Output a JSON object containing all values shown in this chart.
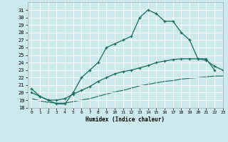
{
  "title": "",
  "xlabel": "Humidex (Indice chaleur)",
  "ylabel": "",
  "bg_color": "#cce9ed",
  "grid_color": "#ffffff",
  "line_color": "#1a6b5a",
  "ylim": [
    18,
    32
  ],
  "xlim": [
    -0.5,
    23
  ],
  "yticks": [
    18,
    19,
    20,
    21,
    22,
    23,
    24,
    25,
    26,
    27,
    28,
    29,
    30,
    31
  ],
  "xticks": [
    0,
    1,
    2,
    3,
    4,
    5,
    6,
    7,
    8,
    9,
    10,
    11,
    12,
    13,
    14,
    15,
    16,
    17,
    18,
    19,
    20,
    21,
    22,
    23
  ],
  "line1_x": [
    0,
    1,
    2,
    3,
    4,
    5,
    6,
    7,
    8,
    9,
    10,
    11,
    12,
    13,
    14,
    15,
    16,
    17,
    18,
    19,
    20,
    21,
    22
  ],
  "line1_y": [
    20.5,
    19.5,
    19.0,
    18.5,
    18.5,
    20.0,
    22.0,
    23.0,
    24.0,
    26.0,
    26.5,
    27.0,
    27.5,
    30.0,
    31.0,
    30.5,
    29.5,
    29.5,
    28.0,
    27.0,
    24.5,
    24.5,
    23.0
  ],
  "line2_x": [
    0,
    1,
    2,
    3,
    4,
    5,
    6,
    7,
    8,
    9,
    10,
    11,
    12,
    13,
    14,
    15,
    16,
    17,
    18,
    19,
    20,
    21,
    22,
    23
  ],
  "line2_y": [
    20.0,
    19.5,
    19.0,
    19.0,
    19.2,
    19.8,
    20.3,
    20.8,
    21.5,
    22.0,
    22.5,
    22.8,
    23.0,
    23.3,
    23.6,
    24.0,
    24.2,
    24.4,
    24.5,
    24.5,
    24.5,
    24.3,
    23.5,
    23.0
  ],
  "line3_x": [
    0,
    1,
    2,
    3,
    4,
    5,
    6,
    7,
    8,
    9,
    10,
    11,
    12,
    13,
    14,
    15,
    16,
    17,
    18,
    19,
    20,
    21,
    22,
    23
  ],
  "line3_y": [
    19.2,
    18.9,
    18.7,
    18.6,
    18.6,
    18.8,
    19.0,
    19.2,
    19.5,
    19.8,
    20.1,
    20.3,
    20.6,
    20.9,
    21.1,
    21.3,
    21.5,
    21.6,
    21.8,
    21.9,
    22.0,
    22.1,
    22.2,
    22.2
  ]
}
